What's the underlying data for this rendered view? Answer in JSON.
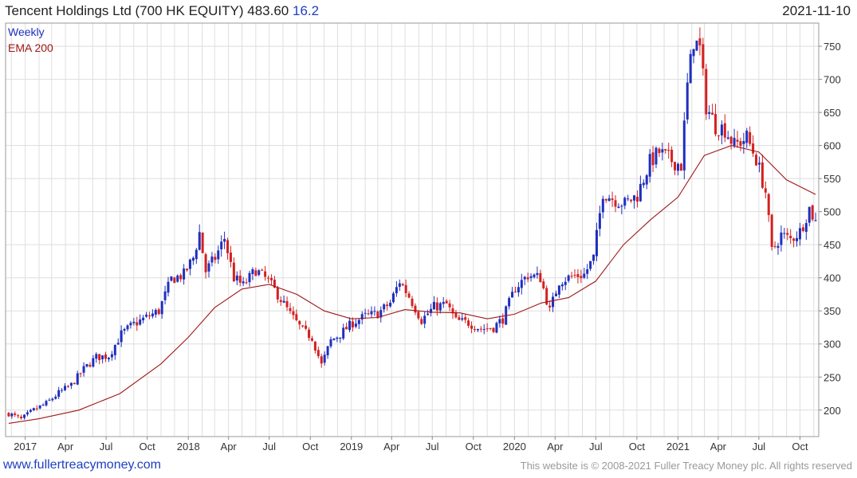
{
  "header": {
    "title": "Tencent Holdings Ltd (700 HK EQUITY) 483.60",
    "change": "16.2",
    "date": "2021-11-10"
  },
  "footer": {
    "site": "www.fullertreacymoney.com",
    "copyright": "This website is © 2008-2021 Fuller Treacy Money plc. All rights reserved"
  },
  "colors": {
    "up": "#1f2fbf",
    "down": "#d42020",
    "ema": "#a01818",
    "grid": "#dedede",
    "title_change": "#1f3fbf"
  },
  "chart_data": {
    "type": "candlestick",
    "frequency": "Weekly",
    "legend": [
      "Weekly",
      "EMA 200"
    ],
    "legend_position": "top-left",
    "grid": true,
    "x_range": [
      "2016-11-18",
      "2021-11-12"
    ],
    "y_range": [
      160,
      785
    ],
    "y_ticks": [
      200,
      250,
      300,
      350,
      400,
      450,
      500,
      550,
      600,
      650,
      700,
      750
    ],
    "x_ticks": [
      {
        "label": "2017",
        "date": "2017-01-01"
      },
      {
        "label": "Apr",
        "date": "2017-04-01"
      },
      {
        "label": "Jul",
        "date": "2017-07-01"
      },
      {
        "label": "Oct",
        "date": "2017-10-01"
      },
      {
        "label": "2018",
        "date": "2018-01-01"
      },
      {
        "label": "Apr",
        "date": "2018-04-01"
      },
      {
        "label": "Jul",
        "date": "2018-07-01"
      },
      {
        "label": "Oct",
        "date": "2018-10-01"
      },
      {
        "label": "2019",
        "date": "2019-01-01"
      },
      {
        "label": "Apr",
        "date": "2019-04-01"
      },
      {
        "label": "Jul",
        "date": "2019-07-01"
      },
      {
        "label": "Oct",
        "date": "2019-10-01"
      },
      {
        "label": "2020",
        "date": "2020-01-01"
      },
      {
        "label": "Apr",
        "date": "2020-04-01"
      },
      {
        "label": "Jul",
        "date": "2020-07-01"
      },
      {
        "label": "Oct",
        "date": "2020-10-01"
      },
      {
        "label": "2021",
        "date": "2021-01-01"
      },
      {
        "label": "Apr",
        "date": "2021-04-01"
      },
      {
        "label": "Jul",
        "date": "2021-07-01"
      },
      {
        "label": "Oct",
        "date": "2021-10-01"
      }
    ],
    "close_path": [
      [
        "2016-11-25",
        195
      ],
      [
        "2016-12-23",
        186
      ],
      [
        "2017-01-20",
        200
      ],
      [
        "2017-02-17",
        210
      ],
      [
        "2017-03-17",
        226
      ],
      [
        "2017-04-14",
        238
      ],
      [
        "2017-05-12",
        262
      ],
      [
        "2017-06-09",
        280
      ],
      [
        "2017-07-07",
        282
      ],
      [
        "2017-08-04",
        315
      ],
      [
        "2017-09-01",
        330
      ],
      [
        "2017-09-29",
        340
      ],
      [
        "2017-10-27",
        350
      ],
      [
        "2017-11-24",
        398
      ],
      [
        "2017-12-22",
        405
      ],
      [
        "2018-01-12",
        430
      ],
      [
        "2018-01-26",
        468
      ],
      [
        "2018-02-09",
        410
      ],
      [
        "2018-03-02",
        430
      ],
      [
        "2018-03-23",
        460
      ],
      [
        "2018-04-13",
        400
      ],
      [
        "2018-05-04",
        388
      ],
      [
        "2018-06-01",
        412
      ],
      [
        "2018-06-29",
        395
      ],
      [
        "2018-07-20",
        375
      ],
      [
        "2018-08-17",
        345
      ],
      [
        "2018-09-14",
        320
      ],
      [
        "2018-10-05",
        310
      ],
      [
        "2018-10-26",
        268
      ],
      [
        "2018-11-16",
        305
      ],
      [
        "2018-12-07",
        315
      ],
      [
        "2019-01-04",
        332
      ],
      [
        "2019-02-01",
        342
      ],
      [
        "2019-03-01",
        346
      ],
      [
        "2019-03-29",
        362
      ],
      [
        "2019-04-19",
        395
      ],
      [
        "2019-05-10",
        372
      ],
      [
        "2019-06-07",
        336
      ],
      [
        "2019-07-05",
        356
      ],
      [
        "2019-08-02",
        360
      ],
      [
        "2019-08-23",
        335
      ],
      [
        "2019-09-20",
        332
      ],
      [
        "2019-10-18",
        323
      ],
      [
        "2019-11-15",
        325
      ],
      [
        "2019-12-06",
        338
      ],
      [
        "2020-01-03",
        385
      ],
      [
        "2020-01-31",
        404
      ],
      [
        "2020-02-28",
        400
      ],
      [
        "2020-03-20",
        350
      ],
      [
        "2020-04-10",
        395
      ],
      [
        "2020-05-08",
        402
      ],
      [
        "2020-06-05",
        405
      ],
      [
        "2020-06-26",
        430
      ],
      [
        "2020-07-17",
        530
      ],
      [
        "2020-08-07",
        520
      ],
      [
        "2020-09-04",
        512
      ],
      [
        "2020-10-02",
        525
      ],
      [
        "2020-10-30",
        575
      ],
      [
        "2020-11-20",
        590
      ],
      [
        "2020-12-11",
        580
      ],
      [
        "2021-01-08",
        570
      ],
      [
        "2021-01-22",
        690
      ],
      [
        "2021-02-05",
        760
      ],
      [
        "2021-02-19",
        745
      ],
      [
        "2021-03-05",
        660
      ],
      [
        "2021-03-26",
        630
      ],
      [
        "2021-04-16",
        625
      ],
      [
        "2021-05-07",
        600
      ],
      [
        "2021-06-04",
        612
      ],
      [
        "2021-06-25",
        580
      ],
      [
        "2021-07-16",
        530
      ],
      [
        "2021-07-30",
        440
      ],
      [
        "2021-08-20",
        465
      ],
      [
        "2021-09-10",
        458
      ],
      [
        "2021-10-01",
        470
      ],
      [
        "2021-10-22",
        505
      ],
      [
        "2021-11-05",
        484
      ]
    ],
    "ema200": [
      [
        "2016-11-25",
        180
      ],
      [
        "2017-02-01",
        187
      ],
      [
        "2017-05-01",
        200
      ],
      [
        "2017-08-01",
        225
      ],
      [
        "2017-11-01",
        270
      ],
      [
        "2018-01-01",
        310
      ],
      [
        "2018-03-01",
        355
      ],
      [
        "2018-05-01",
        383
      ],
      [
        "2018-07-01",
        390
      ],
      [
        "2018-09-01",
        375
      ],
      [
        "2018-11-01",
        350
      ],
      [
        "2019-01-01",
        338
      ],
      [
        "2019-03-01",
        340
      ],
      [
        "2019-05-01",
        352
      ],
      [
        "2019-07-01",
        348
      ],
      [
        "2019-09-01",
        347
      ],
      [
        "2019-11-01",
        338
      ],
      [
        "2020-01-01",
        345
      ],
      [
        "2020-03-01",
        362
      ],
      [
        "2020-05-01",
        370
      ],
      [
        "2020-07-01",
        395
      ],
      [
        "2020-09-01",
        450
      ],
      [
        "2020-11-01",
        488
      ],
      [
        "2021-01-01",
        522
      ],
      [
        "2021-03-01",
        585
      ],
      [
        "2021-05-01",
        600
      ],
      [
        "2021-07-01",
        590
      ],
      [
        "2021-09-01",
        548
      ],
      [
        "2021-11-05",
        526
      ]
    ]
  }
}
